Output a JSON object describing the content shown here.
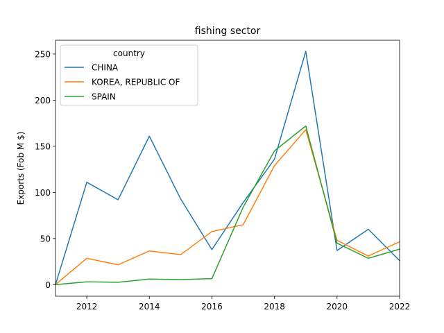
{
  "chart_data": {
    "type": "line",
    "title": "fishing sector",
    "xlabel": "",
    "ylabel": "Exports (Fob M $)",
    "x": [
      2011,
      2012,
      2013,
      2014,
      2015,
      2016,
      2017,
      2018,
      2019,
      2020,
      2021,
      2022
    ],
    "xlim": [
      2011,
      2022
    ],
    "ylim": [
      -12.6,
      265
    ],
    "xticks": [
      2012,
      2014,
      2016,
      2018,
      2020,
      2022
    ],
    "yticks": [
      0,
      50,
      100,
      150,
      200,
      250
    ],
    "grid": false,
    "legend": {
      "title": "country",
      "placement": "top-left"
    },
    "series": [
      {
        "name": "CHINA",
        "color": "#1f77b4",
        "values": [
          0,
          111,
          92,
          161,
          93,
          38,
          89,
          136,
          253,
          37,
          60,
          26
        ]
      },
      {
        "name": "KOREA, REPUBLIC OF",
        "color": "#ff7f0e",
        "values": [
          0,
          28.5,
          21.5,
          36.5,
          32.5,
          57.5,
          65,
          129,
          168,
          48,
          31,
          46.5
        ]
      },
      {
        "name": "SPAIN",
        "color": "#2ca02c",
        "values": [
          0,
          3,
          2.5,
          6,
          5.5,
          6.5,
          84,
          145,
          172,
          45,
          28.5,
          38.5
        ]
      }
    ]
  }
}
